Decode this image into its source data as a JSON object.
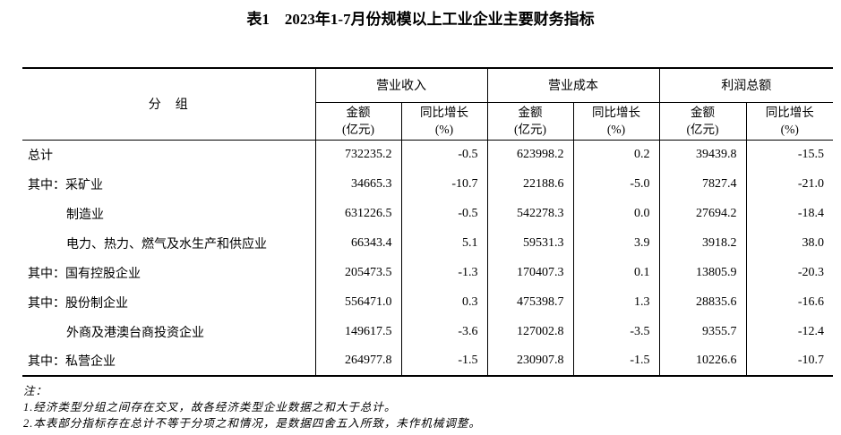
{
  "title": "表1　2023年1-7月份规模以上工业企业主要财务指标",
  "colors": {
    "text": "#000000",
    "border": "#000000",
    "background": "#ffffff"
  },
  "table": {
    "header": {
      "group_label": "分　组",
      "groups": [
        {
          "label": "营业收入"
        },
        {
          "label": "营业成本"
        },
        {
          "label": "利润总额"
        }
      ],
      "amount_label": "金额",
      "amount_unit": "(亿元)",
      "growth_label": "同比增长",
      "growth_unit": "(%)"
    },
    "rows": [
      {
        "label": "总计",
        "indent": false,
        "values": [
          "732235.2",
          "-0.5",
          "623998.2",
          "0.2",
          "39439.8",
          "-15.5"
        ]
      },
      {
        "label": "其中：采矿业",
        "indent": false,
        "values": [
          "34665.3",
          "-10.7",
          "22188.6",
          "-5.0",
          "7827.4",
          "-21.0"
        ]
      },
      {
        "label": "制造业",
        "indent": true,
        "values": [
          "631226.5",
          "-0.5",
          "542278.3",
          "0.0",
          "27694.2",
          "-18.4"
        ]
      },
      {
        "label": "电力、热力、燃气及水生产和供应业",
        "indent": true,
        "values": [
          "66343.4",
          "5.1",
          "59531.3",
          "3.9",
          "3918.2",
          "38.0"
        ]
      },
      {
        "label": "其中：国有控股企业",
        "indent": false,
        "values": [
          "205473.5",
          "-1.3",
          "170407.3",
          "0.1",
          "13805.9",
          "-20.3"
        ]
      },
      {
        "label": "其中：股份制企业",
        "indent": false,
        "values": [
          "556471.0",
          "0.3",
          "475398.7",
          "1.3",
          "28835.6",
          "-16.6"
        ]
      },
      {
        "label": "外商及港澳台商投资企业",
        "indent": true,
        "values": [
          "149617.5",
          "-3.6",
          "127002.8",
          "-3.5",
          "9355.7",
          "-12.4"
        ]
      },
      {
        "label": "其中：私营企业",
        "indent": false,
        "values": [
          "264977.8",
          "-1.5",
          "230907.8",
          "-1.5",
          "10226.6",
          "-10.7"
        ]
      }
    ]
  },
  "notes": {
    "label": "注：",
    "items": [
      "1.经济类型分组之间存在交叉，故各经济类型企业数据之和大于总计。",
      "2.本表部分指标存在总计不等于分项之和情况，是数据四舍五入所致，未作机械调整。"
    ]
  }
}
